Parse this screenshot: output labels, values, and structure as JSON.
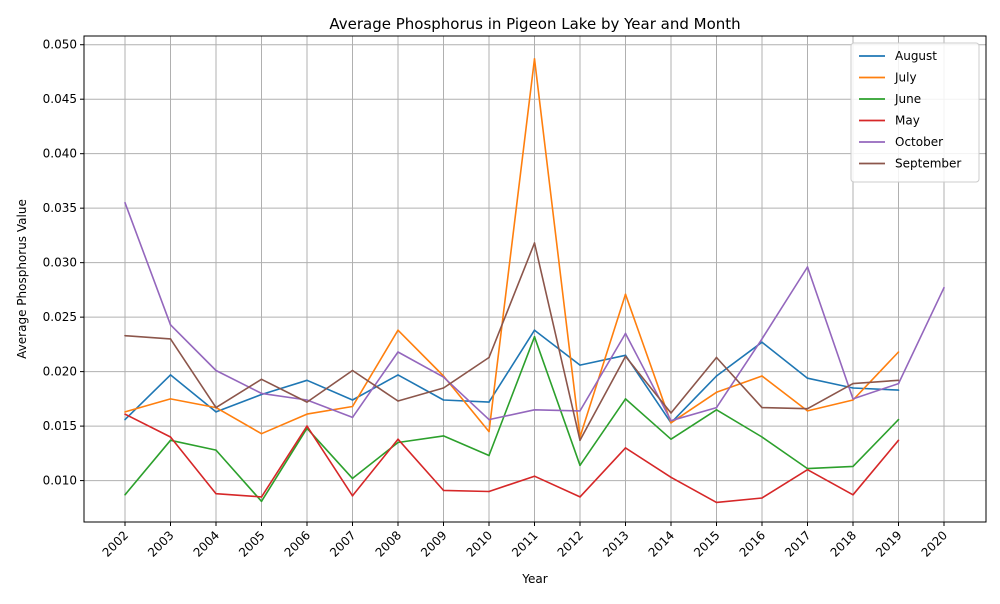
{
  "chart_data": {
    "type": "line",
    "title": "Average Phosphorus in Pigeon Lake by Year and Month",
    "xlabel": "Year",
    "ylabel": "Average Phosphorus Value",
    "categories": [
      "2002",
      "2003",
      "2004",
      "2005",
      "2006",
      "2007",
      "2008",
      "2009",
      "2010",
      "2011",
      "2012",
      "2013",
      "2014",
      "2015",
      "2016",
      "2017",
      "2018",
      "2019",
      "2020"
    ],
    "ylim": [
      0.0062,
      0.0508
    ],
    "yticks": [
      "0.010",
      "0.015",
      "0.020",
      "0.025",
      "0.030",
      "0.035",
      "0.040",
      "0.045",
      "0.050"
    ],
    "grid": true,
    "legend_position": "top-right",
    "series": [
      {
        "name": "August",
        "color": "#1f77b4",
        "values": [
          0.0156,
          0.0197,
          0.0163,
          0.0179,
          0.0192,
          0.0174,
          0.0197,
          0.0174,
          0.0172,
          0.0238,
          0.0206,
          0.0215,
          0.0153,
          0.0196,
          0.0227,
          0.0194,
          0.0185,
          0.0183,
          null
        ]
      },
      {
        "name": "July",
        "color": "#ff7f0e",
        "values": [
          0.0163,
          0.0175,
          0.0167,
          0.0143,
          0.0161,
          0.0168,
          0.0238,
          0.0196,
          0.0145,
          0.0487,
          0.014,
          0.0271,
          0.0153,
          0.0181,
          0.0196,
          0.0164,
          0.0174,
          0.0218,
          null
        ]
      },
      {
        "name": "June",
        "color": "#2ca02c",
        "values": [
          0.0087,
          0.0137,
          0.0128,
          0.0081,
          0.0148,
          0.0102,
          0.0135,
          0.0141,
          0.0123,
          0.0232,
          0.0114,
          0.0175,
          0.0138,
          0.0165,
          0.014,
          0.0111,
          0.0113,
          0.0156,
          null
        ]
      },
      {
        "name": "May",
        "color": "#d62728",
        "values": [
          0.0161,
          0.014,
          0.0088,
          0.0085,
          0.015,
          0.0086,
          0.0138,
          0.0091,
          0.009,
          0.0104,
          0.0085,
          0.013,
          0.0103,
          0.008,
          0.0084,
          0.011,
          0.0087,
          0.0137,
          null
        ]
      },
      {
        "name": "October",
        "color": "#9467bd",
        "values": [
          0.0355,
          0.0243,
          0.0201,
          0.018,
          0.0174,
          0.0158,
          0.0218,
          0.0195,
          0.0156,
          0.0165,
          0.0164,
          0.0235,
          0.0155,
          0.0167,
          0.023,
          0.0296,
          0.0175,
          0.0189,
          0.0277
        ]
      },
      {
        "name": "September",
        "color": "#8c564b",
        "values": [
          0.0233,
          0.023,
          0.0167,
          0.0193,
          0.0172,
          0.0201,
          0.0173,
          0.0185,
          0.0213,
          0.0318,
          0.0137,
          0.0214,
          0.0162,
          0.0213,
          0.0167,
          0.0166,
          0.0189,
          0.0192,
          null
        ]
      }
    ]
  }
}
